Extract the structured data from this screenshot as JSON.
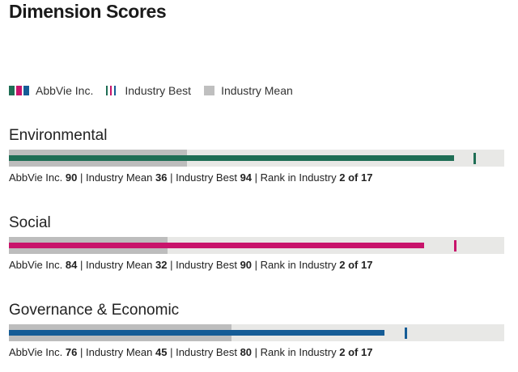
{
  "page": {
    "title": "Dimension Scores"
  },
  "legend": {
    "company": "AbbVie Inc.",
    "best": "Industry Best",
    "mean": "Industry Mean"
  },
  "colors": {
    "environmental": "#1f6e55",
    "social": "#c8146b",
    "governance": "#155c96",
    "mean": "#bdbdbd",
    "track": "#e8e8e6"
  },
  "labels": {
    "company": "AbbVie Inc.",
    "mean": "Industry Mean",
    "best": "Industry Best",
    "rank": "Rank in Industry",
    "sep": " | "
  },
  "chart_data": {
    "type": "bar",
    "xlim": [
      0,
      100
    ],
    "legend_position": "top-left",
    "series_names": [
      "AbbVie Inc.",
      "Industry Best",
      "Industry Mean"
    ],
    "dimensions": [
      {
        "name": "Environmental",
        "score": 90,
        "mean": 36,
        "best": 94,
        "rank": "2 of 17",
        "color_key": "environmental"
      },
      {
        "name": "Social",
        "score": 84,
        "mean": 32,
        "best": 90,
        "rank": "2 of 17",
        "color_key": "social"
      },
      {
        "name": "Governance & Economic",
        "score": 76,
        "mean": 45,
        "best": 80,
        "rank": "2 of 17",
        "color_key": "governance"
      }
    ]
  }
}
